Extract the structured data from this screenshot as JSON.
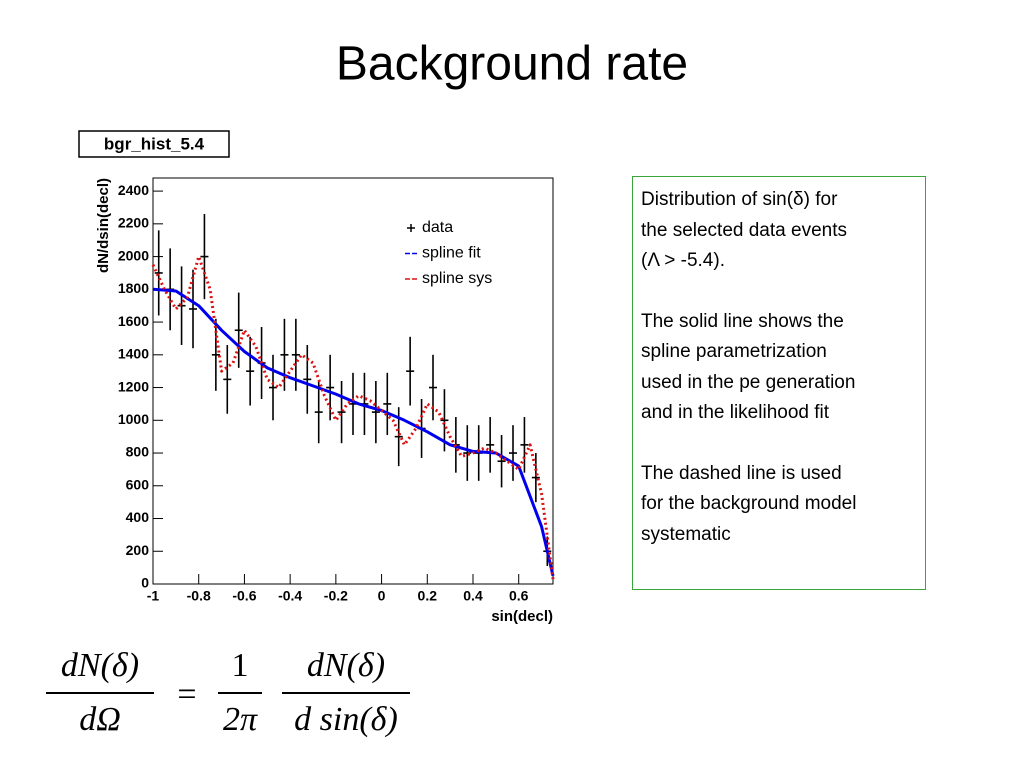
{
  "title": "Background rate",
  "notes": [
    [
      "Distribution of sin(δ) for",
      "the selected data events",
      "(Λ > -5.4)."
    ],
    [
      "The solid line shows the",
      "spline parametrization",
      "used in the pe generation",
      "and in the likelihood fit"
    ],
    [
      "The dashed line is used",
      "for the background model",
      "systematic"
    ]
  ],
  "formula": {
    "lhs_num": "dN(δ)",
    "lhs_den": "dΩ",
    "equals": "=",
    "num": "1",
    "den": "2π",
    "rhs_num": "dN(δ)",
    "rhs_den": "d sin(δ)"
  },
  "chart_data": {
    "type": "line",
    "title": "bgr_hist_5.4",
    "x_label": "sin(decl)",
    "y_label": "dN/dsin(decl)",
    "xlim": [
      -1,
      0.75
    ],
    "ylim": [
      0,
      2480
    ],
    "xticks": [
      -1,
      -0.8,
      -0.6,
      -0.4,
      -0.2,
      0,
      0.2,
      0.4,
      0.6
    ],
    "yticks": [
      0,
      200,
      400,
      600,
      800,
      1000,
      1200,
      1400,
      1600,
      1800,
      2000,
      2200,
      2400
    ],
    "series": [
      {
        "name": "data",
        "color": "#000000",
        "style": "points",
        "x": [
          -0.975,
          -0.925,
          -0.875,
          -0.825,
          -0.775,
          -0.725,
          -0.675,
          -0.625,
          -0.575,
          -0.525,
          -0.475,
          -0.425,
          -0.375,
          -0.325,
          -0.275,
          -0.225,
          -0.175,
          -0.125,
          -0.075,
          -0.025,
          0.025,
          0.075,
          0.125,
          0.175,
          0.225,
          0.275,
          0.325,
          0.375,
          0.425,
          0.475,
          0.525,
          0.575,
          0.625,
          0.675,
          0.725
        ],
        "values": [
          1900,
          1800,
          1700,
          1680,
          2000,
          1400,
          1250,
          1550,
          1300,
          1350,
          1200,
          1400,
          1400,
          1250,
          1050,
          1200,
          1050,
          1100,
          1100,
          1050,
          1100,
          900,
          1300,
          950,
          1200,
          1000,
          850,
          800,
          800,
          850,
          750,
          800,
          850,
          650,
          200
        ],
        "errors": [
          260,
          250,
          240,
          240,
          260,
          220,
          210,
          230,
          210,
          220,
          200,
          220,
          220,
          210,
          190,
          200,
          190,
          190,
          190,
          190,
          190,
          180,
          210,
          180,
          200,
          190,
          170,
          170,
          170,
          170,
          160,
          170,
          170,
          150,
          90
        ]
      },
      {
        "name": "spline fit",
        "color": "#0000ee",
        "style": "solid",
        "x": [
          -1,
          -0.9,
          -0.8,
          -0.7,
          -0.6,
          -0.5,
          -0.4,
          -0.3,
          -0.2,
          -0.1,
          0,
          0.1,
          0.2,
          0.3,
          0.4,
          0.5,
          0.6,
          0.7,
          0.75
        ],
        "values": [
          1800,
          1790,
          1700,
          1550,
          1420,
          1320,
          1260,
          1210,
          1160,
          1100,
          1060,
          1000,
          930,
          850,
          810,
          800,
          720,
          350,
          50
        ]
      },
      {
        "name": "spline sys",
        "color": "#dd1111",
        "style": "dotted",
        "x": [
          -1,
          -0.95,
          -0.9,
          -0.85,
          -0.8,
          -0.75,
          -0.7,
          -0.65,
          -0.6,
          -0.55,
          -0.5,
          -0.45,
          -0.4,
          -0.35,
          -0.3,
          -0.25,
          -0.2,
          -0.15,
          -0.1,
          -0.05,
          0,
          0.05,
          0.1,
          0.15,
          0.2,
          0.25,
          0.3,
          0.35,
          0.4,
          0.45,
          0.5,
          0.55,
          0.6,
          0.65,
          0.7,
          0.75
        ],
        "values": [
          1950,
          1800,
          1680,
          1750,
          2000,
          1800,
          1300,
          1350,
          1550,
          1450,
          1250,
          1200,
          1300,
          1400,
          1350,
          1150,
          1000,
          1100,
          1150,
          1120,
          1060,
          1000,
          850,
          950,
          1100,
          1050,
          900,
          780,
          800,
          830,
          800,
          750,
          700,
          850,
          550,
          30
        ]
      }
    ]
  }
}
